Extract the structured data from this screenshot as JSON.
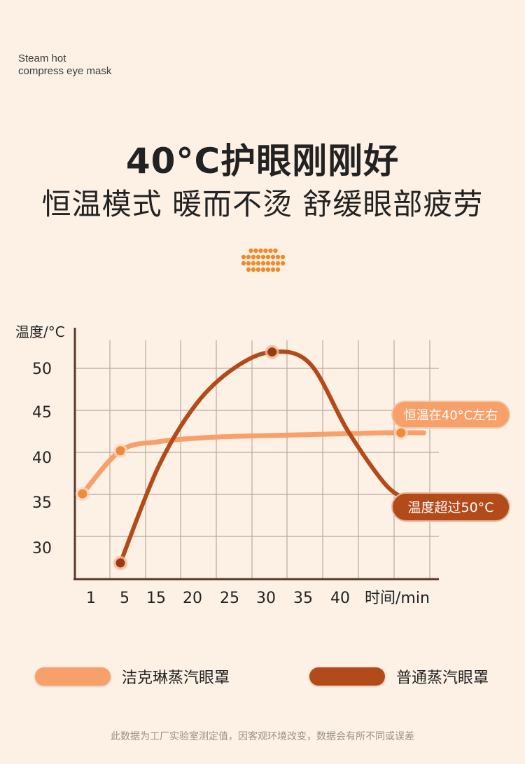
{
  "brand": {
    "line1": "Steam hot",
    "line2": "compress eye mask"
  },
  "headline": "40°C护眼刚刚好",
  "subline": "恒温模式 暖而不烫 舒缓眼部疲劳",
  "icons": {
    "decoration": "dots-grid-icon"
  },
  "colors": {
    "background": "#fdf1e5",
    "light_series": "#f7a06a",
    "dark_series": "#b24a1a",
    "grid": "#b8aaa0",
    "axis": "#5a3a2a"
  },
  "chart_data": {
    "type": "line",
    "ylabel": "温度/°C",
    "xlabel": "时间/min",
    "x_ticks": [
      "1",
      "5",
      "15",
      "20",
      "25",
      "30",
      "35",
      "40"
    ],
    "y_ticks": [
      50,
      45,
      40,
      35,
      30
    ],
    "xlim": [
      -1,
      47
    ],
    "ylim": [
      26,
      54
    ],
    "grid": true,
    "series": [
      {
        "name": "洁克琳蒸汽眼罩",
        "color": "#f7a06a",
        "x": [
          0,
          5,
          10,
          15,
          20,
          25,
          30,
          35,
          40,
          45
        ],
        "y": [
          35.5,
          40.3,
          41.3,
          41.7,
          41.9,
          42.0,
          42.1,
          42.2,
          42.3,
          42.3
        ],
        "markers": [
          [
            0,
            35.5
          ],
          [
            5,
            40.3
          ],
          [
            42,
            42.3
          ]
        ],
        "callout": "恒温在40°C左右"
      },
      {
        "name": "普通蒸汽眼罩",
        "color": "#b24a1a",
        "x": [
          5,
          10,
          15,
          20,
          25,
          30,
          35,
          40,
          43
        ],
        "y": [
          27.8,
          38.5,
          45.5,
          49.5,
          51.3,
          50.0,
          42.5,
          36.5,
          34.8
        ],
        "markers": [
          [
            5,
            27.8
          ],
          [
            25,
            51.3
          ],
          [
            43,
            34.8
          ]
        ],
        "callout": "温度超过50°C"
      }
    ]
  },
  "legend": {
    "item1": "洁克琳蒸汽眼罩",
    "item2": "普通蒸汽眼罩"
  },
  "note": "此数据为工厂实验室测定值，因客观环境改变，数据会有所不同或误差"
}
